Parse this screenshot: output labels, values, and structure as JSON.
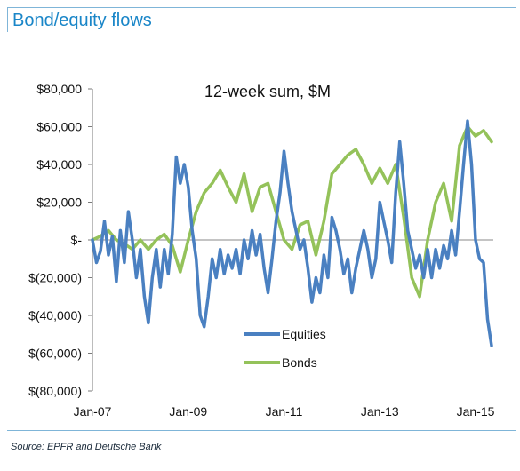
{
  "header": {
    "title": "Bond/equity flows"
  },
  "footer": {
    "source": "Source: EPFR and Deutsche Bank"
  },
  "colors": {
    "equities": "#4a80c1",
    "bonds": "#94c25a",
    "frame": "#7fb5d8",
    "title": "#1a86c8"
  },
  "chart_data": {
    "type": "line",
    "title": "12-week sum, $M",
    "ylim": [
      -80000,
      80000
    ],
    "yticks": [
      80000,
      60000,
      40000,
      20000,
      0,
      -20000,
      -40000,
      -60000,
      -80000
    ],
    "ytick_labels": [
      "$80,000",
      "$60,000",
      "$40,000",
      "$20,000",
      "$-",
      "$(20,000)",
      "$(40,000)",
      "$(60,000)",
      "$(80,000)"
    ],
    "xlim": [
      "2007-01",
      "2015-06"
    ],
    "xticks": [
      "2007-01",
      "2009-01",
      "2011-01",
      "2013-01",
      "2015-01"
    ],
    "xtick_labels": [
      "Jan-07",
      "Jan-09",
      "Jan-11",
      "Jan-13",
      "Jan-15"
    ],
    "legend": {
      "placement": "center-right"
    },
    "grid": false,
    "series": [
      {
        "name": "Equities",
        "color": "#4a80c1",
        "points": [
          [
            "2007-01",
            0
          ],
          [
            "2007-02",
            -12000
          ],
          [
            "2007-03",
            -6000
          ],
          [
            "2007-04",
            10000
          ],
          [
            "2007-05",
            -8000
          ],
          [
            "2007-06",
            2000
          ],
          [
            "2007-07",
            -22000
          ],
          [
            "2007-08",
            5000
          ],
          [
            "2007-09",
            -12000
          ],
          [
            "2007-10",
            15000
          ],
          [
            "2007-11",
            0
          ],
          [
            "2007-12",
            -20000
          ],
          [
            "2008-01",
            -5000
          ],
          [
            "2008-02",
            -30000
          ],
          [
            "2008-03",
            -44000
          ],
          [
            "2008-04",
            -20000
          ],
          [
            "2008-05",
            -5000
          ],
          [
            "2008-06",
            -25000
          ],
          [
            "2008-07",
            -5000
          ],
          [
            "2008-08",
            -18000
          ],
          [
            "2008-09",
            3000
          ],
          [
            "2008-10",
            44000
          ],
          [
            "2008-11",
            30000
          ],
          [
            "2008-12",
            40000
          ],
          [
            "2009-01",
            28000
          ],
          [
            "2009-02",
            5000
          ],
          [
            "2009-03",
            -10000
          ],
          [
            "2009-04",
            -40000
          ],
          [
            "2009-05",
            -46000
          ],
          [
            "2009-06",
            -30000
          ],
          [
            "2009-07",
            -10000
          ],
          [
            "2009-08",
            -20000
          ],
          [
            "2009-09",
            -5000
          ],
          [
            "2009-10",
            -18000
          ],
          [
            "2009-11",
            -8000
          ],
          [
            "2009-12",
            -15000
          ],
          [
            "2010-01",
            -5000
          ],
          [
            "2010-02",
            -18000
          ],
          [
            "2010-03",
            0
          ],
          [
            "2010-04",
            -10000
          ],
          [
            "2010-05",
            5000
          ],
          [
            "2010-06",
            -8000
          ],
          [
            "2010-07",
            3000
          ],
          [
            "2010-08",
            -15000
          ],
          [
            "2010-09",
            -28000
          ],
          [
            "2010-10",
            -10000
          ],
          [
            "2010-11",
            10000
          ],
          [
            "2010-12",
            25000
          ],
          [
            "2011-01",
            47000
          ],
          [
            "2011-02",
            30000
          ],
          [
            "2011-03",
            15000
          ],
          [
            "2011-04",
            5000
          ],
          [
            "2011-05",
            -5000
          ],
          [
            "2011-06",
            0
          ],
          [
            "2011-07",
            -15000
          ],
          [
            "2011-08",
            -33000
          ],
          [
            "2011-09",
            -20000
          ],
          [
            "2011-10",
            -28000
          ],
          [
            "2011-11",
            -8000
          ],
          [
            "2011-12",
            -20000
          ],
          [
            "2012-01",
            12000
          ],
          [
            "2012-02",
            5000
          ],
          [
            "2012-03",
            -5000
          ],
          [
            "2012-04",
            -18000
          ],
          [
            "2012-05",
            -10000
          ],
          [
            "2012-06",
            -28000
          ],
          [
            "2012-07",
            -15000
          ],
          [
            "2012-08",
            -5000
          ],
          [
            "2012-09",
            5000
          ],
          [
            "2012-10",
            -5000
          ],
          [
            "2012-11",
            -20000
          ],
          [
            "2012-12",
            -10000
          ],
          [
            "2013-01",
            20000
          ],
          [
            "2013-02",
            10000
          ],
          [
            "2013-03",
            0
          ],
          [
            "2013-04",
            -12000
          ],
          [
            "2013-05",
            25000
          ],
          [
            "2013-06",
            52000
          ],
          [
            "2013-07",
            30000
          ],
          [
            "2013-08",
            5000
          ],
          [
            "2013-09",
            -5000
          ],
          [
            "2013-10",
            -15000
          ],
          [
            "2013-11",
            -8000
          ],
          [
            "2013-12",
            -20000
          ],
          [
            "2014-01",
            -5000
          ],
          [
            "2014-02",
            -20000
          ],
          [
            "2014-03",
            -5000
          ],
          [
            "2014-04",
            -15000
          ],
          [
            "2014-05",
            -3000
          ],
          [
            "2014-06",
            -10000
          ],
          [
            "2014-07",
            5000
          ],
          [
            "2014-08",
            -8000
          ],
          [
            "2014-09",
            15000
          ],
          [
            "2014-10",
            40000
          ],
          [
            "2014-11",
            63000
          ],
          [
            "2014-12",
            40000
          ],
          [
            "2015-01",
            0
          ],
          [
            "2015-02",
            -10000
          ],
          [
            "2015-03",
            -12000
          ],
          [
            "2015-04",
            -42000
          ],
          [
            "2015-05",
            -56000
          ]
        ]
      },
      {
        "name": "Bonds",
        "color": "#94c25a",
        "points": [
          [
            "2007-01",
            0
          ],
          [
            "2007-03",
            2000
          ],
          [
            "2007-05",
            5000
          ],
          [
            "2007-07",
            0
          ],
          [
            "2007-09",
            -2000
          ],
          [
            "2007-11",
            -5000
          ],
          [
            "2008-01",
            0
          ],
          [
            "2008-03",
            -5000
          ],
          [
            "2008-05",
            0
          ],
          [
            "2008-07",
            3000
          ],
          [
            "2008-09",
            -3000
          ],
          [
            "2008-11",
            -17000
          ],
          [
            "2009-01",
            0
          ],
          [
            "2009-03",
            15000
          ],
          [
            "2009-05",
            25000
          ],
          [
            "2009-07",
            30000
          ],
          [
            "2009-09",
            37000
          ],
          [
            "2009-11",
            28000
          ],
          [
            "2010-01",
            20000
          ],
          [
            "2010-03",
            35000
          ],
          [
            "2010-05",
            15000
          ],
          [
            "2010-07",
            28000
          ],
          [
            "2010-09",
            30000
          ],
          [
            "2010-11",
            15000
          ],
          [
            "2011-01",
            0
          ],
          [
            "2011-03",
            -5000
          ],
          [
            "2011-05",
            8000
          ],
          [
            "2011-07",
            10000
          ],
          [
            "2011-09",
            -8000
          ],
          [
            "2011-11",
            10000
          ],
          [
            "2012-01",
            35000
          ],
          [
            "2012-03",
            40000
          ],
          [
            "2012-05",
            45000
          ],
          [
            "2012-07",
            48000
          ],
          [
            "2012-09",
            40000
          ],
          [
            "2012-11",
            30000
          ],
          [
            "2013-01",
            38000
          ],
          [
            "2013-03",
            30000
          ],
          [
            "2013-05",
            40000
          ],
          [
            "2013-07",
            12000
          ],
          [
            "2013-09",
            -20000
          ],
          [
            "2013-11",
            -30000
          ],
          [
            "2014-01",
            0
          ],
          [
            "2014-03",
            20000
          ],
          [
            "2014-05",
            30000
          ],
          [
            "2014-07",
            10000
          ],
          [
            "2014-09",
            50000
          ],
          [
            "2014-11",
            60000
          ],
          [
            "2015-01",
            55000
          ],
          [
            "2015-03",
            58000
          ],
          [
            "2015-05",
            52000
          ]
        ]
      }
    ]
  }
}
